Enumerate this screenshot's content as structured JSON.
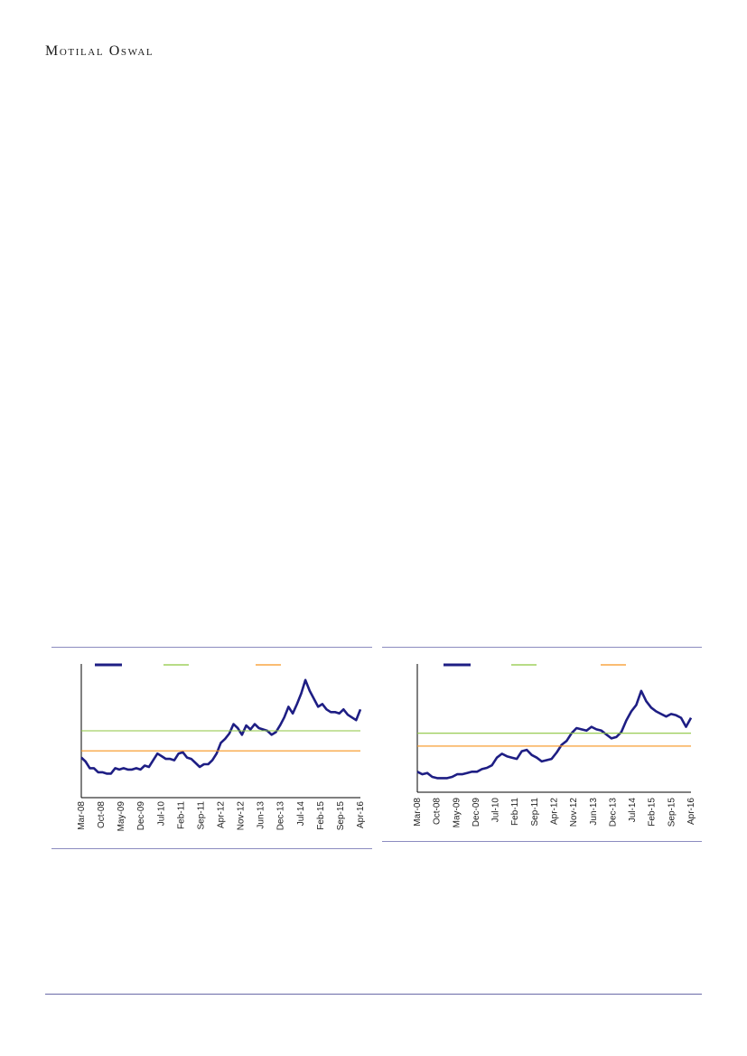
{
  "header": {
    "brand": "Motilal Oswal"
  },
  "colors": {
    "line": "#1e1e84",
    "upper_band": "#8cc63f",
    "lower_band": "#f7941d",
    "rule": "#8c8cc0"
  },
  "chart_data": [
    {
      "type": "line",
      "title": "",
      "x_tick_labels": [
        "Mar-08",
        "Oct-08",
        "May-09",
        "Dec-09",
        "Jul-10",
        "Feb-11",
        "Sep-11",
        "Apr-12",
        "Nov-12",
        "Jun-13",
        "Dec-13",
        "Jul-14",
        "Feb-15",
        "Sep-15",
        "Apr-16"
      ],
      "legend": {
        "placement": "top-left",
        "entries": [
          "",
          "",
          ""
        ]
      },
      "y_range": [
        0,
        100
      ],
      "series": [
        {
          "values": [
            30,
            27,
            22,
            22,
            19,
            19,
            18,
            18,
            22,
            21,
            22,
            21,
            21,
            22,
            21,
            24,
            23,
            28,
            33,
            31,
            29,
            29,
            28,
            33,
            34,
            30,
            29,
            26,
            23,
            25,
            25,
            28,
            33,
            41,
            44,
            48,
            55,
            52,
            47,
            54,
            51,
            55,
            52,
            51,
            50,
            47,
            49,
            54,
            60,
            68,
            63,
            70,
            78,
            88,
            80,
            74,
            68,
            70,
            66,
            64,
            64,
            63,
            66,
            62,
            60,
            58,
            66
          ],
          "color_key": "line"
        },
        {
          "values": [
            50,
            50
          ],
          "color_key": "upper_band"
        },
        {
          "values": [
            35,
            35
          ],
          "color_key": "lower_band"
        }
      ]
    },
    {
      "type": "line",
      "title": "",
      "x_tick_labels": [
        "Mar-08",
        "Oct-08",
        "May-09",
        "Dec-09",
        "Jul-10",
        "Feb-11",
        "Sep-11",
        "Apr-12",
        "Nov-12",
        "Jun-13",
        "Dec-13",
        "Jul-14",
        "Feb-15",
        "Sep-15",
        "Apr-16"
      ],
      "legend": {
        "placement": "top-left",
        "entries": [
          "",
          "",
          ""
        ]
      },
      "y_range": [
        0,
        100
      ],
      "series": [
        {
          "values": [
            16,
            14,
            15,
            12,
            11,
            11,
            11,
            12,
            14,
            14,
            15,
            16,
            16,
            18,
            19,
            21,
            27,
            30,
            28,
            27,
            26,
            32,
            33,
            29,
            27,
            24,
            25,
            26,
            31,
            37,
            40,
            46,
            50,
            49,
            48,
            51,
            49,
            48,
            45,
            42,
            43,
            47,
            56,
            63,
            68,
            79,
            71,
            66,
            63,
            61,
            59,
            61,
            60,
            58,
            51,
            58
          ],
          "color_key": "line"
        },
        {
          "values": [
            46,
            46
          ],
          "color_key": "upper_band"
        },
        {
          "values": [
            36,
            36
          ],
          "color_key": "lower_band"
        }
      ]
    }
  ]
}
